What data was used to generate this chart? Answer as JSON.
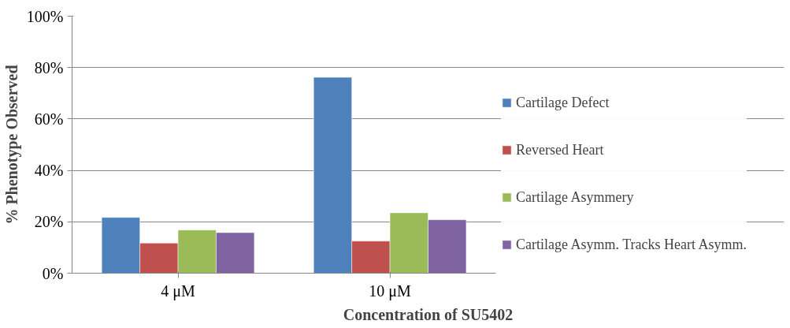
{
  "chart_data": {
    "type": "bar",
    "xlabel": "Concentration of SU5402",
    "ylabel": "% Phenotype Observed",
    "categories": [
      "4 μM",
      "10 μM"
    ],
    "series": [
      {
        "name": "Cartilage Defect",
        "color": "#4f81bd",
        "values": [
          21.7,
          76.2
        ]
      },
      {
        "name": "Reversed Heart",
        "color": "#c0504d",
        "values": [
          11.7,
          12.5
        ]
      },
      {
        "name": "Cartilage Asymmery",
        "color": "#9bbb59",
        "values": [
          16.8,
          23.5
        ]
      },
      {
        "name": "Cartilage Asymm. Tracks Heart Asymm.",
        "color": "#8064a2",
        "values": [
          15.8,
          20.8
        ]
      }
    ],
    "ylim": [
      0,
      100
    ],
    "yticks": [
      {
        "value": 0,
        "label": "0%"
      },
      {
        "value": 20,
        "label": "20%"
      },
      {
        "value": 40,
        "label": "40%"
      },
      {
        "value": 60,
        "label": "60%"
      },
      {
        "value": 80,
        "label": "80%"
      },
      {
        "value": 100,
        "label": "100%"
      }
    ],
    "grid": "y",
    "legend": "right"
  }
}
